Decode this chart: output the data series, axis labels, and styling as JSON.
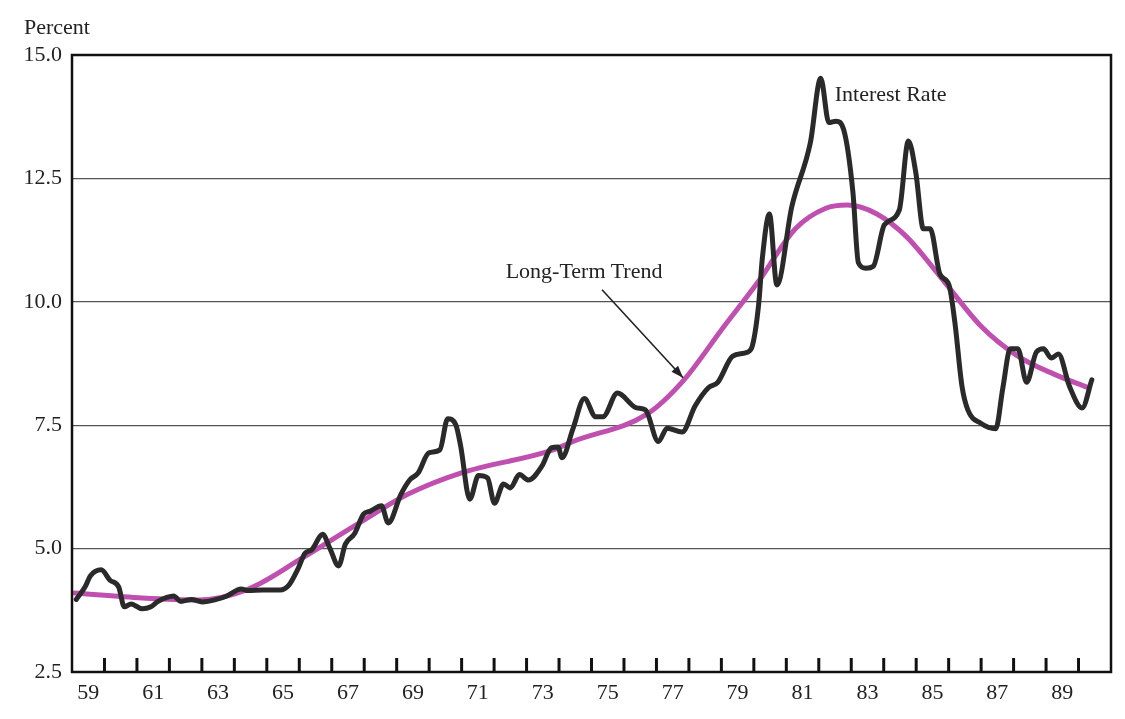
{
  "chart_data": {
    "type": "line",
    "ylabel": "Percent",
    "xlim": [
      58.5,
      90.5
    ],
    "ylim": [
      2.5,
      15
    ],
    "xticks": [
      59,
      61,
      63,
      65,
      67,
      69,
      71,
      73,
      75,
      77,
      79,
      81,
      83,
      85,
      87,
      89,
      {
        "value": 59.5,
        "label": null
      },
      {
        "value": 60.5,
        "label": null
      },
      {
        "value": 61.5,
        "label": null
      },
      {
        "value": 62.5,
        "label": null
      },
      {
        "value": 63.5,
        "label": null
      },
      {
        "value": 64.5,
        "label": null
      },
      {
        "value": 65.5,
        "label": null
      },
      {
        "value": 66.5,
        "label": null
      },
      {
        "value": 67.5,
        "label": null
      },
      {
        "value": 68.5,
        "label": null
      },
      {
        "value": 69.5,
        "label": null
      },
      {
        "value": 70.5,
        "label": null
      },
      {
        "value": 71.5,
        "label": null
      },
      {
        "value": 72.5,
        "label": null
      },
      {
        "value": 73.5,
        "label": null
      },
      {
        "value": 74.5,
        "label": null
      },
      {
        "value": 75.5,
        "label": null
      },
      {
        "value": 76.5,
        "label": null
      },
      {
        "value": 77.5,
        "label": null
      },
      {
        "value": 78.5,
        "label": null
      },
      {
        "value": 79.5,
        "label": null
      },
      {
        "value": 80.5,
        "label": null
      },
      {
        "value": 81.5,
        "label": null
      },
      {
        "value": 82.5,
        "label": null
      },
      {
        "value": 83.5,
        "label": null
      },
      {
        "value": 84.5,
        "label": null
      },
      {
        "value": 85.5,
        "label": null
      },
      {
        "value": 86.5,
        "label": null
      },
      {
        "value": 87.5,
        "label": null
      },
      {
        "value": 88.5,
        "label": null
      },
      {
        "value": 89.5,
        "label": null
      }
    ],
    "yticks": [
      2.5,
      {
        "value": 5,
        "label": "5.0"
      },
      7.5,
      {
        "value": 10,
        "label": "10.0"
      },
      12.5,
      {
        "value": 15,
        "label": "15.0"
      }
    ],
    "grid": "y",
    "legend": false,
    "marker": "none",
    "line_style": "solid",
    "annotations": [
      {
        "text": "Interest Rate",
        "x": 81.56,
        "y": 14.53
      },
      {
        "text": "Long-Term Trend",
        "x": 77.35,
        "y": 8.42
      }
    ],
    "series": [
      {
        "color": "#2a2a2a",
        "x": [
          58.63,
          58.9,
          59.07,
          59.4,
          59.67,
          59.94,
          60.11,
          60.32,
          60.66,
          60.93,
          61.15,
          61.42,
          61.63,
          61.85,
          62.18,
          62.51,
          62.95,
          63.27,
          63.71,
          63.93,
          64.36,
          64.91,
          65.18,
          65.46,
          65.67,
          65.89,
          66.22,
          66.44,
          66.71,
          66.92,
          67.2,
          67.48,
          67.69,
          68.03,
          68.24,
          68.63,
          68.9,
          69.16,
          69.49,
          69.83,
          70.07,
          70.32,
          70.47,
          70.75,
          71.02,
          71.3,
          71.51,
          71.79,
          72.0,
          72.28,
          72.56,
          72.98,
          73.26,
          73.47,
          73.59,
          73.93,
          74.28,
          74.63,
          74.85,
          75.3,
          75.89,
          76.16,
          76.56,
          76.83,
          77.29,
          77.69,
          78.1,
          78.39,
          78.85,
          79.3,
          79.46,
          79.65,
          79.76,
          79.98,
          80.21,
          80.67,
          81.24,
          81.56,
          81.81,
          82.03,
          82.27,
          82.55,
          82.72,
          82.95,
          83.18,
          83.52,
          83.98,
          84.26,
          84.49,
          84.72,
          84.93,
          85.23,
          85.51,
          85.69,
          85.91,
          86.09,
          86.49,
          86.95,
          87.17,
          87.4,
          87.63,
          87.9,
          88.2,
          88.42,
          88.66,
          88.88,
          89.22,
          89.61,
          89.91
        ],
        "values": [
          3.97,
          4.22,
          4.45,
          4.57,
          4.36,
          4.22,
          3.82,
          3.88,
          3.78,
          3.82,
          3.93,
          4.01,
          4.04,
          3.93,
          3.97,
          3.92,
          3.97,
          4.04,
          4.18,
          4.15,
          4.16,
          4.16,
          4.26,
          4.59,
          4.9,
          4.98,
          5.29,
          5.01,
          4.65,
          5.09,
          5.3,
          5.7,
          5.76,
          5.87,
          5.52,
          6.1,
          6.39,
          6.53,
          6.94,
          7.0,
          7.63,
          7.51,
          7.08,
          6.0,
          6.48,
          6.43,
          5.92,
          6.31,
          6.23,
          6.5,
          6.39,
          6.68,
          7.04,
          7.06,
          6.84,
          7.43,
          8.04,
          7.67,
          7.67,
          8.15,
          7.85,
          7.81,
          7.17,
          7.44,
          7.36,
          7.89,
          8.26,
          8.37,
          8.9,
          8.98,
          9.12,
          9.96,
          10.87,
          11.78,
          10.34,
          11.93,
          13.22,
          14.53,
          13.63,
          13.66,
          13.48,
          12.23,
          10.79,
          10.68,
          10.72,
          11.56,
          11.86,
          13.26,
          12.61,
          11.48,
          11.48,
          10.56,
          10.34,
          9.59,
          8.29,
          7.81,
          7.54,
          7.43,
          8.26,
          9.05,
          9.05,
          8.37,
          8.98,
          9.05,
          8.86,
          8.94,
          8.29,
          7.85,
          8.42
        ]
      },
      {
        "color": "#c050b0",
        "x": [
          58.58,
          60.66,
          62.4,
          63.93,
          65.57,
          67.2,
          68.84,
          70.47,
          73.32,
          73.93,
          76.22,
          77.35,
          78.5,
          79.65,
          80.78,
          81.7,
          82.38,
          83.29,
          84.2,
          85.35,
          86.49,
          87.63,
          88.76,
          89.8
        ],
        "values": [
          4.1,
          4.0,
          3.96,
          4.18,
          4.8,
          5.46,
          6.1,
          6.53,
          7.0,
          7.17,
          7.73,
          8.42,
          9.43,
          10.42,
          11.48,
          11.89,
          11.96,
          11.78,
          11.32,
          10.42,
          9.51,
          8.9,
          8.53,
          8.26
        ]
      }
    ]
  }
}
